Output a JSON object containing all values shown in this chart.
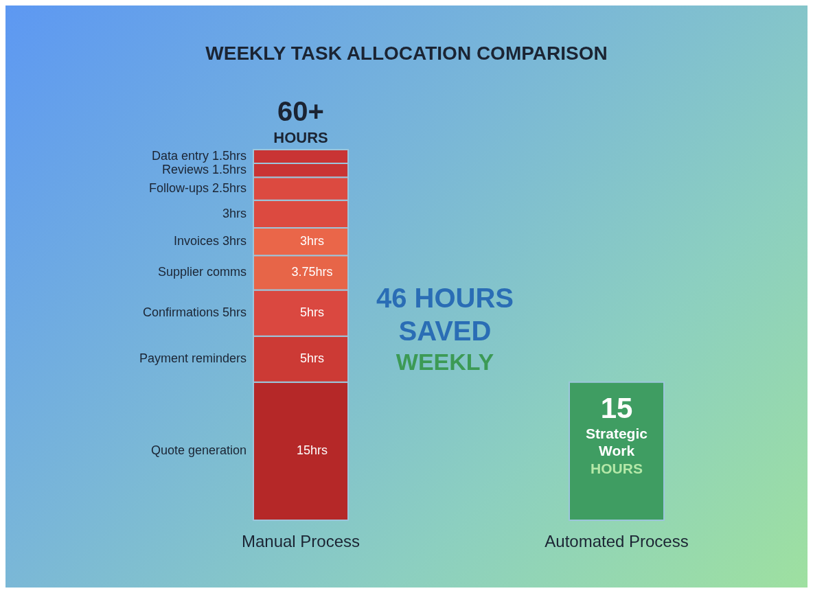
{
  "chart_data": {
    "type": "bar",
    "title": "WEEKLY TASK ALLOCATION COMPARISON",
    "categories": [
      "Manual Process",
      "Automated Process"
    ],
    "stacked": true,
    "series": [
      {
        "name": "Quote generation",
        "color": "#b52828",
        "values": [
          15,
          null
        ],
        "value_labels": [
          "15hrs",
          null
        ]
      },
      {
        "name": "Payment reminders",
        "color": "#cc3a35",
        "values": [
          5,
          null
        ],
        "value_labels": [
          "5hrs",
          null
        ]
      },
      {
        "name": "Confirmations 5hrs",
        "color": "#da4840",
        "values": [
          5,
          null
        ],
        "value_labels": [
          "5hrs",
          null
        ]
      },
      {
        "name": "Supplier comms",
        "color": "#e76548",
        "values": [
          3.75,
          null
        ],
        "value_labels": [
          "3.75hrs",
          null
        ]
      },
      {
        "name": "Invoices 3hrs",
        "color": "#ea6649",
        "values": [
          3,
          null
        ],
        "value_labels": [
          "3hrs",
          null
        ]
      },
      {
        "name": "3hrs",
        "color": "#dc4a40",
        "values": [
          3,
          null
        ]
      },
      {
        "name": "Follow-ups 2.5hrs",
        "color": "#dc4a40",
        "values": [
          2.5,
          null
        ]
      },
      {
        "name": "Reviews 1.5hrs",
        "color": "#c93434",
        "values": [
          1.5,
          null
        ]
      },
      {
        "name": "Data entry 1.5hrs",
        "color": "#c93434",
        "values": [
          1.5,
          null
        ]
      },
      {
        "color": "#3f9d62",
        "values": [
          null,
          15
        ],
        "value_labels": [
          null,
          "15"
        ]
      }
    ],
    "totals": [
      "60+ HOURS",
      null
    ],
    "annotations": [
      "46 HOURS SAVED",
      "WEEKLY",
      "Strategic Work",
      "HOURS"
    ]
  }
}
